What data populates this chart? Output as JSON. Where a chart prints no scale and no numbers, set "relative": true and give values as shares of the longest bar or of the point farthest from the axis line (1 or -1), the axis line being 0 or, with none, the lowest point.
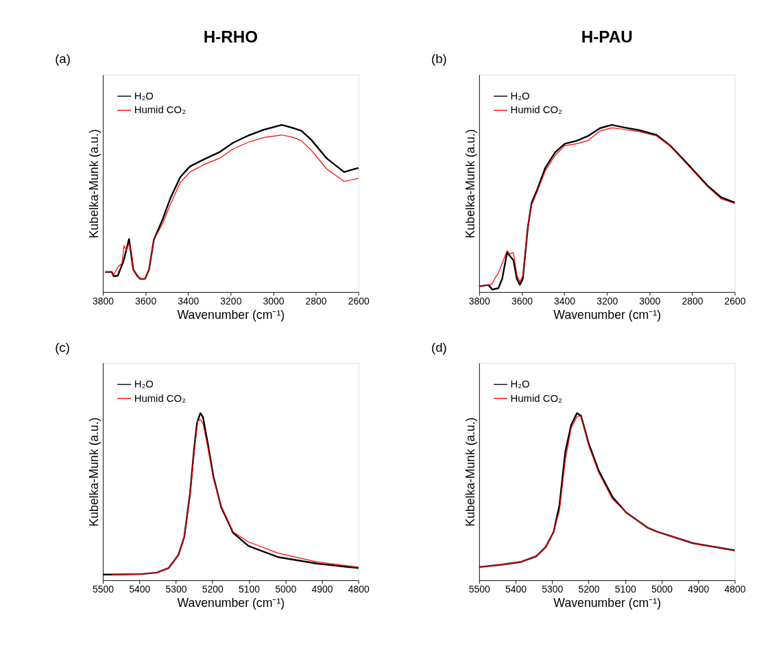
{
  "chart_data": [
    {
      "type": "line",
      "title": "H-RHO",
      "xlabel": "Wavenumber (cm⁻¹)",
      "ylabel": "Kubelka-Munk (a.u.)",
      "relative": true,
      "legend": "top left",
      "annotations": [
        "(a)"
      ],
      "xlim": [
        3800,
        2600
      ],
      "xticks": [
        3800,
        3600,
        3400,
        3200,
        3000,
        2800,
        2600
      ],
      "series": [
        {
          "name": "H₂O",
          "color": "#000000",
          "x": [
            3790,
            3758,
            3749,
            3730,
            3703,
            3677,
            3657,
            3639,
            3625,
            3602,
            3583,
            3561,
            3519,
            3483,
            3437,
            3391,
            3327,
            3253,
            3189,
            3116,
            3042,
            2960,
            2905,
            2868,
            2822,
            2749,
            2667,
            2600
          ],
          "values": [
            0.12,
            0.12,
            0.095,
            0.098,
            0.185,
            0.317,
            0.135,
            0.098,
            0.079,
            0.079,
            0.135,
            0.311,
            0.436,
            0.561,
            0.687,
            0.752,
            0.793,
            0.837,
            0.893,
            0.937,
            0.972,
            1.0,
            0.981,
            0.965,
            0.912,
            0.8,
            0.718,
            0.743
          ]
        },
        {
          "name": "Humid CO₂",
          "color": "#ff0000",
          "x": [
            3790,
            3758,
            3749,
            3730,
            3710,
            3700,
            3690,
            3677,
            3665,
            3657,
            3639,
            3625,
            3602,
            3583,
            3561,
            3519,
            3483,
            3437,
            3391,
            3327,
            3253,
            3189,
            3116,
            3042,
            2960,
            2905,
            2868,
            2822,
            2749,
            2667,
            2600
          ],
          "values": [
            0.12,
            0.123,
            0.104,
            0.148,
            0.173,
            0.279,
            0.248,
            0.292,
            0.236,
            0.135,
            0.104,
            0.079,
            0.079,
            0.135,
            0.311,
            0.411,
            0.524,
            0.655,
            0.718,
            0.762,
            0.8,
            0.856,
            0.897,
            0.925,
            0.94,
            0.925,
            0.906,
            0.85,
            0.737,
            0.662,
            0.68
          ]
        }
      ]
    },
    {
      "type": "line",
      "title": "H-PAU",
      "xlabel": "Wavenumber (cm⁻¹)",
      "ylabel": "Kubelka-Munk (a.u.)",
      "relative": true,
      "legend": "top left",
      "annotations": [
        "(b)"
      ],
      "xlim": [
        3800,
        2600
      ],
      "xticks": [
        3800,
        3600,
        3400,
        3200,
        3000,
        2800,
        2600
      ],
      "series": [
        {
          "name": "H₂O",
          "color": "#000000",
          "x": [
            3800,
            3756,
            3738,
            3710,
            3692,
            3669,
            3639,
            3623,
            3609,
            3595,
            3572,
            3554,
            3527,
            3490,
            3444,
            3398,
            3343,
            3288,
            3233,
            3178,
            3123,
            3050,
            2967,
            2903,
            2820,
            2728,
            2664,
            2600
          ],
          "values": [
            0.035,
            0.042,
            0.015,
            0.023,
            0.079,
            0.236,
            0.19,
            0.079,
            0.044,
            0.079,
            0.381,
            0.533,
            0.614,
            0.742,
            0.835,
            0.887,
            0.905,
            0.934,
            0.98,
            1.0,
            0.986,
            0.969,
            0.94,
            0.876,
            0.765,
            0.637,
            0.567,
            0.535
          ]
        },
        {
          "name": "Humid CO₂",
          "color": "#ff0000",
          "x": [
            3800,
            3756,
            3738,
            3725,
            3710,
            3692,
            3669,
            3655,
            3639,
            3623,
            3609,
            3595,
            3572,
            3554,
            3527,
            3490,
            3444,
            3398,
            3343,
            3288,
            3233,
            3178,
            3123,
            3050,
            2967,
            2903,
            2820,
            2728,
            2664,
            2600
          ],
          "values": [
            0.035,
            0.042,
            0.05,
            0.085,
            0.114,
            0.172,
            0.248,
            0.23,
            0.236,
            0.102,
            0.062,
            0.097,
            0.381,
            0.521,
            0.602,
            0.724,
            0.817,
            0.876,
            0.887,
            0.907,
            0.963,
            0.983,
            0.974,
            0.96,
            0.934,
            0.872,
            0.759,
            0.631,
            0.558,
            0.53
          ]
        }
      ]
    },
    {
      "type": "line",
      "xlabel": "Wavenumber (cm⁻¹)",
      "ylabel": "Kubelka-Munk (a.u.)",
      "relative": true,
      "legend": "top left",
      "annotations": [
        "(c)"
      ],
      "xlim": [
        5500,
        4800
      ],
      "xticks": [
        5500,
        5400,
        5300,
        5200,
        5100,
        5000,
        4900,
        4800
      ],
      "series": [
        {
          "name": "H₂O",
          "color": "#000000",
          "x": [
            5500,
            5475,
            5395,
            5352,
            5320,
            5293,
            5277,
            5261,
            5250,
            5242,
            5233,
            5226,
            5213,
            5197,
            5176,
            5143,
            5101,
            5021,
            4914,
            4800
          ],
          "values": [
            0.034,
            0.034,
            0.037,
            0.046,
            0.073,
            0.151,
            0.259,
            0.523,
            0.787,
            0.942,
            1.0,
            0.978,
            0.823,
            0.619,
            0.439,
            0.283,
            0.205,
            0.139,
            0.1,
            0.073
          ]
        },
        {
          "name": "Humid CO₂",
          "color": "#ff0000",
          "x": [
            5475,
            5395,
            5352,
            5320,
            5293,
            5277,
            5261,
            5250,
            5240,
            5233,
            5226,
            5213,
            5197,
            5176,
            5143,
            5101,
            5021,
            4914,
            4800
          ],
          "values": [
            0.034,
            0.037,
            0.046,
            0.073,
            0.151,
            0.259,
            0.51,
            0.763,
            0.954,
            0.96,
            0.942,
            0.799,
            0.607,
            0.445,
            0.289,
            0.229,
            0.163,
            0.11,
            0.079
          ]
        }
      ]
    },
    {
      "type": "line",
      "xlabel": "Wavenumber (cm⁻¹)",
      "ylabel": "Kubelka-Munk (a.u.)",
      "relative": true,
      "legend": "top left",
      "annotations": [
        "(d)"
      ],
      "xlim": [
        5500,
        4800
      ],
      "xticks": [
        5500,
        5400,
        5300,
        5200,
        5100,
        5000,
        4900,
        4800
      ],
      "series": [
        {
          "name": "H₂O",
          "color": "#000000",
          "x": [
            5500,
            5441,
            5387,
            5344,
            5318,
            5296,
            5280,
            5264,
            5248,
            5232,
            5221,
            5200,
            5173,
            5135,
            5098,
            5039,
            5012,
            4915,
            4800
          ],
          "values": [
            0.079,
            0.093,
            0.109,
            0.143,
            0.198,
            0.29,
            0.45,
            0.769,
            0.929,
            1.0,
            0.984,
            0.818,
            0.658,
            0.499,
            0.407,
            0.315,
            0.29,
            0.222,
            0.179
          ]
        },
        {
          "name": "Humid CO₂",
          "color": "#ff0000",
          "x": [
            5500,
            5441,
            5387,
            5344,
            5318,
            5296,
            5280,
            5264,
            5248,
            5232,
            5226,
            5221,
            5200,
            5173,
            5135,
            5098,
            5039,
            5012,
            4915,
            4800
          ],
          "values": [
            0.079,
            0.093,
            0.109,
            0.143,
            0.198,
            0.29,
            0.419,
            0.72,
            0.91,
            0.978,
            0.984,
            0.978,
            0.806,
            0.646,
            0.486,
            0.407,
            0.315,
            0.29,
            0.222,
            0.179
          ]
        }
      ]
    }
  ]
}
